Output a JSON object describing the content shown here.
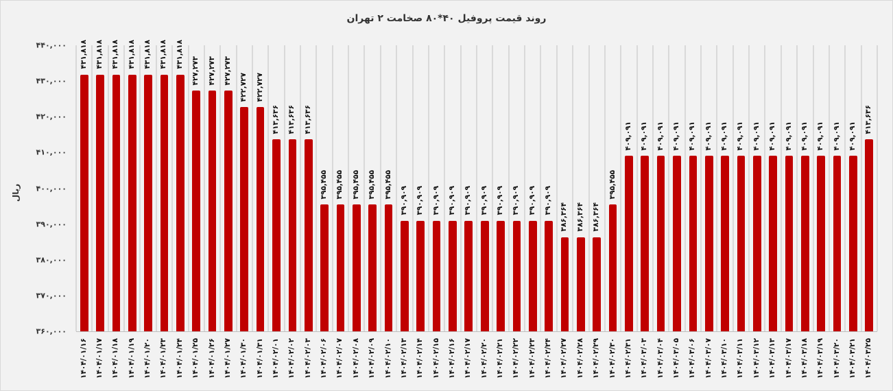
{
  "chart_data": {
    "type": "bar",
    "title": "روند قیمت پروفیل  ۴۰*۸۰ صخامت ۲ تهران",
    "xlabel": "",
    "ylabel": "ریال",
    "ylim": [
      360000,
      440000
    ],
    "yticks": [
      360000,
      370000,
      380000,
      390000,
      400000,
      410000,
      420000,
      430000,
      440000
    ],
    "ytick_labels": [
      "۳۶۰,۰۰۰",
      "۳۷۰,۰۰۰",
      "۳۸۰,۰۰۰",
      "۳۹۰,۰۰۰",
      "۴۰۰,۰۰۰",
      "۴۱۰,۰۰۰",
      "۴۲۰,۰۰۰",
      "۴۳۰,۰۰۰",
      "۴۴۰,۰۰۰"
    ],
    "bar_color": "#c00000",
    "grid": "vertical",
    "legend": "none",
    "categories": [
      "۱۴۰۴/۰۱/۱۶",
      "۱۴۰۴/۰۱/۱۷",
      "۱۴۰۴/۰۱/۱۸",
      "۱۴۰۴/۰۱/۱۹",
      "۱۴۰۴/۰۱/۲۰",
      "۱۴۰۴/۰۱/۲۳",
      "۱۴۰۴/۰۱/۲۴",
      "۱۴۰۴/۰۱/۲۵",
      "۱۴۰۴/۰۱/۲۶",
      "۱۴۰۴/۰۱/۲۷",
      "۱۴۰۴/۰۱/۳۰",
      "۱۴۰۴/۰۱/۳۱",
      "۱۴۰۴/۰۲/۰۱",
      "۱۴۰۴/۰۲/۰۲",
      "۱۴۰۴/۰۲/۰۳",
      "۱۴۰۴/۰۲/۰۶",
      "۱۴۰۴/۰۲/۰۷",
      "۱۴۰۴/۰۲/۰۸",
      "۱۴۰۴/۰۲/۰۹",
      "۱۴۰۴/۰۲/۱۰",
      "۱۴۰۴/۰۲/۱۳",
      "۱۴۰۴/۰۲/۱۴",
      "۱۴۰۴/۰۲/۱۵",
      "۱۴۰۴/۰۲/۱۶",
      "۱۴۰۴/۰۲/۱۷",
      "۱۴۰۴/۰۲/۲۰",
      "۱۴۰۴/۰۲/۲۱",
      "۱۴۰۴/۰۲/۲۲",
      "۱۴۰۴/۰۲/۲۳",
      "۱۴۰۴/۰۲/۲۴",
      "۱۴۰۴/۰۲/۲۷",
      "۱۴۰۴/۰۲/۲۸",
      "۱۴۰۴/۰۲/۲۹",
      "۱۴۰۴/۰۲/۳۰",
      "۱۴۰۴/۰۲/۳۱",
      "۱۴۰۴/۰۳/۰۳",
      "۱۴۰۴/۰۳/۰۴",
      "۱۴۰۴/۰۳/۰۵",
      "۱۴۰۴/۰۳/۰۶",
      "۱۴۰۴/۰۳/۰۷",
      "۱۴۰۴/۰۳/۱۰",
      "۱۴۰۴/۰۳/۱۱",
      "۱۴۰۴/۰۳/۱۲",
      "۱۴۰۴/۰۳/۱۳",
      "۱۴۰۴/۰۳/۱۷",
      "۱۴۰۴/۰۳/۱۸",
      "۱۴۰۴/۰۳/۱۹",
      "۱۴۰۴/۰۳/۲۰",
      "۱۴۰۴/۰۳/۲۱",
      "۱۴۰۴/۰۳/۲۵"
    ],
    "values": [
      431818,
      431818,
      431818,
      431818,
      431818,
      431818,
      431818,
      427273,
      427273,
      427273,
      422727,
      422727,
      413636,
      413636,
      413636,
      395455,
      395455,
      395455,
      395455,
      395455,
      390909,
      390909,
      390909,
      390909,
      390909,
      390909,
      390909,
      390909,
      390909,
      390909,
      386364,
      386364,
      386364,
      395455,
      409091,
      409091,
      409091,
      409091,
      409091,
      409091,
      409091,
      409091,
      409091,
      409091,
      409091,
      409091,
      409091,
      409091,
      409091,
      413636
    ],
    "value_labels": [
      "۴۳۱,۸۱۸",
      "۴۳۱,۸۱۸",
      "۴۳۱,۸۱۸",
      "۴۳۱,۸۱۸",
      "۴۳۱,۸۱۸",
      "۴۳۱,۸۱۸",
      "۴۳۱,۸۱۸",
      "۴۲۷,۲۷۳",
      "۴۲۷,۲۷۳",
      "۴۲۷,۲۷۳",
      "۴۲۲,۷۲۷",
      "۴۲۲,۷۲۷",
      "۴۱۳,۶۳۶",
      "۴۱۳,۶۳۶",
      "۴۱۳,۶۳۶",
      "۳۹۵,۴۵۵",
      "۳۹۵,۴۵۵",
      "۳۹۵,۴۵۵",
      "۳۹۵,۴۵۵",
      "۳۹۵,۴۵۵",
      "۳۹۰,۹۰۹",
      "۳۹۰,۹۰۹",
      "۳۹۰,۹۰۹",
      "۳۹۰,۹۰۹",
      "۳۹۰,۹۰۹",
      "۳۹۰,۹۰۹",
      "۳۹۰,۹۰۹",
      "۳۹۰,۹۰۹",
      "۳۹۰,۹۰۹",
      "۳۹۰,۹۰۹",
      "۳۸۶,۳۶۴",
      "۳۸۶,۳۶۴",
      "۳۸۶,۳۶۴",
      "۳۹۵,۴۵۵",
      "۴۰۹,۰۹۱",
      "۴۰۹,۰۹۱",
      "۴۰۹,۰۹۱",
      "۴۰۹,۰۹۱",
      "۴۰۹,۰۹۱",
      "۴۰۹,۰۹۱",
      "۴۰۹,۰۹۱",
      "۴۰۹,۰۹۱",
      "۴۰۹,۰۹۱",
      "۴۰۹,۰۹۱",
      "۴۰۹,۰۹۱",
      "۴۰۹,۰۹۱",
      "۴۰۹,۰۹۱",
      "۴۰۹,۰۹۱",
      "۴۰۹,۰۹۱",
      "۴۱۳,۶۳۶"
    ]
  }
}
